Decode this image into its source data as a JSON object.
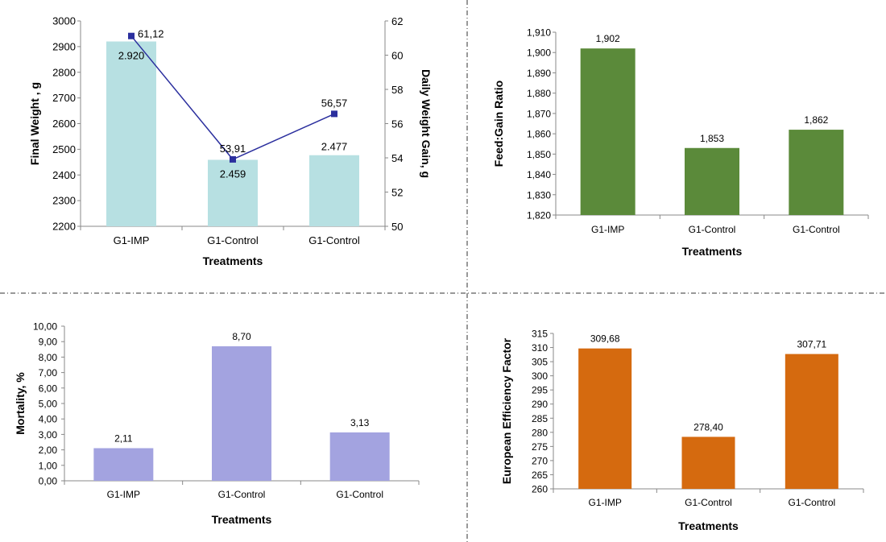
{
  "chart_data": [
    {
      "type": "bar",
      "title": "",
      "xlabel": "Treatments",
      "ylabel": "Final Weight , g",
      "y2label": "Daily Weight  Gain, g",
      "categories": [
        "G1-IMP",
        "G1-Control",
        "G1-Control"
      ],
      "ylim": [
        2200,
        3000
      ],
      "yticks": [
        "2200",
        "2300",
        "2400",
        "2500",
        "2600",
        "2700",
        "2800",
        "2900",
        "3000"
      ],
      "y2lim": [
        50,
        62
      ],
      "y2ticks": [
        "50",
        "52",
        "54",
        "56",
        "58",
        "60",
        "62"
      ],
      "series": [
        {
          "name": "Final Weight",
          "kind": "bar",
          "color": "#b7e0e2",
          "values": [
            2920,
            2459,
            2477
          ],
          "labels": [
            "2.920",
            "2.459",
            "2.477"
          ]
        },
        {
          "name": "Daily Weight Gain",
          "kind": "line",
          "axis": "secondary",
          "color": "#2b2f9e",
          "values": [
            61.12,
            53.91,
            56.57
          ],
          "labels": [
            "61,12",
            "53,91",
            "56,57"
          ]
        }
      ]
    },
    {
      "type": "bar",
      "title": "",
      "xlabel": "Treatments",
      "ylabel": "Feed:Gain Ratio",
      "categories": [
        "G1-IMP",
        "G1-Control",
        "G1-Control"
      ],
      "ylim": [
        1.82,
        1.91
      ],
      "yticks": [
        "1,820",
        "1,830",
        "1,840",
        "1,850",
        "1,860",
        "1,870",
        "1,880",
        "1,890",
        "1,900",
        "1,910"
      ],
      "series": [
        {
          "name": "Feed:Gain Ratio",
          "kind": "bar",
          "color": "#5b8a3a",
          "values": [
            1.902,
            1.853,
            1.862
          ],
          "labels": [
            "1,902",
            "1,853",
            "1,862"
          ]
        }
      ]
    },
    {
      "type": "bar",
      "title": "",
      "xlabel": "Treatments",
      "ylabel": "Mortality, %",
      "categories": [
        "G1-IMP",
        "G1-Control",
        "G1-Control"
      ],
      "ylim": [
        0,
        10
      ],
      "yticks": [
        "0,00",
        "1,00",
        "2,00",
        "3,00",
        "4,00",
        "5,00",
        "6,00",
        "7,00",
        "8,00",
        "9,00",
        "10,00"
      ],
      "series": [
        {
          "name": "Mortality",
          "kind": "bar",
          "color": "#a3a3e0",
          "values": [
            2.11,
            8.7,
            3.13
          ],
          "labels": [
            "2,11",
            "8,70",
            "3,13"
          ]
        }
      ]
    },
    {
      "type": "bar",
      "title": "",
      "xlabel": "Treatments",
      "ylabel": "European Efficiency Factor",
      "categories": [
        "G1-IMP",
        "G1-Control",
        "G1-Control"
      ],
      "ylim": [
        260,
        315
      ],
      "yticks": [
        "260",
        "265",
        "270",
        "275",
        "280",
        "285",
        "290",
        "295",
        "300",
        "305",
        "310",
        "315"
      ],
      "series": [
        {
          "name": "European Efficiency Factor",
          "kind": "bar",
          "color": "#d56a0f",
          "values": [
            309.68,
            278.4,
            307.71
          ],
          "labels": [
            "309,68",
            "278,40",
            "307,71"
          ]
        }
      ]
    }
  ]
}
